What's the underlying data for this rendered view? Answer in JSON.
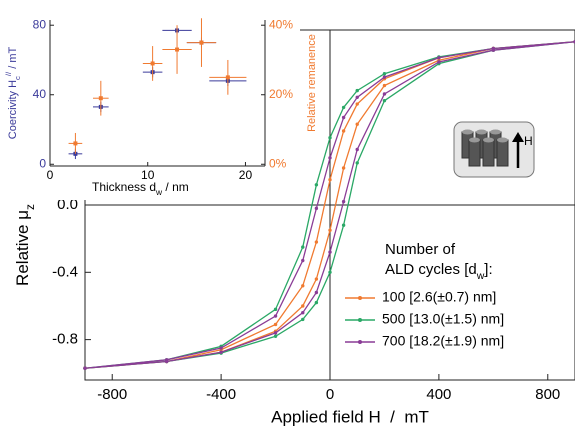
{
  "chart_data": [
    {
      "type": "line",
      "x_label": "Applied field H  /  mT",
      "y_label": [
        "Relative μ",
        "z"
      ],
      "xlim": [
        -900,
        900
      ],
      "ylim": [
        -1.04,
        1.04
      ],
      "xticks": [
        -800,
        -400,
        0,
        400,
        800
      ],
      "yticks": [
        -0.8,
        -0.4,
        {
          "value": 0,
          "label": "0.0"
        }
      ],
      "legend_title": [
        "Number of",
        "ALD cycles [d",
        "w",
        "]:"
      ],
      "schematic_label": "H",
      "series": [
        {
          "name": "100 [2.6(±0.7) nm]",
          "color": "#f07a30",
          "x": [
            -900,
            -600,
            -400,
            -200,
            -100,
            -50,
            0,
            50,
            100,
            200,
            400,
            600,
            900,
            900,
            600,
            400,
            200,
            100,
            50,
            0,
            -50,
            -100,
            -200,
            -400,
            -600,
            -900
          ],
          "values": [
            -0.97,
            -0.93,
            -0.875,
            -0.75,
            -0.6,
            -0.44,
            -0.15,
            0.22,
            0.48,
            0.71,
            0.86,
            0.93,
            0.97,
            0.97,
            0.93,
            0.875,
            0.75,
            0.6,
            0.44,
            0.15,
            -0.22,
            -0.48,
            -0.71,
            -0.86,
            -0.93,
            -0.97
          ]
        },
        {
          "name": "500 [13.0(±1.5) nm]",
          "color": "#2aa866",
          "x": [
            -900,
            -600,
            -400,
            -200,
            -100,
            -50,
            0,
            50,
            100,
            200,
            400,
            600,
            900,
            900,
            600,
            400,
            200,
            100,
            50,
            0,
            -50,
            -100,
            -200,
            -400,
            -600,
            -900
          ],
          "values": [
            -0.97,
            -0.93,
            -0.88,
            -0.78,
            -0.68,
            -0.58,
            -0.4,
            -0.12,
            0.25,
            0.62,
            0.84,
            0.92,
            0.97,
            0.97,
            0.93,
            0.88,
            0.78,
            0.68,
            0.58,
            0.4,
            0.12,
            -0.25,
            -0.62,
            -0.84,
            -0.92,
            -0.97
          ]
        },
        {
          "name": "700 [18.2(±1.9) nm]",
          "color": "#8a3c96",
          "x": [
            -900,
            -600,
            -400,
            -200,
            -100,
            -50,
            0,
            50,
            100,
            200,
            400,
            600,
            900,
            900,
            600,
            400,
            200,
            100,
            50,
            0,
            -50,
            -100,
            -200,
            -400,
            -600,
            -900
          ],
          "values": [
            -0.97,
            -0.93,
            -0.875,
            -0.76,
            -0.64,
            -0.52,
            -0.28,
            0.02,
            0.33,
            0.66,
            0.85,
            0.92,
            0.97,
            0.97,
            0.93,
            0.875,
            0.76,
            0.64,
            0.52,
            0.28,
            -0.02,
            -0.33,
            -0.66,
            -0.85,
            -0.92,
            -0.97
          ]
        }
      ]
    },
    {
      "type": "scatter",
      "x_label": [
        "Thickness d",
        "w",
        " / nm"
      ],
      "y_label": [
        "Coercivity H",
        "c",
        "//",
        " / mT"
      ],
      "y2_label": "Relative remanence",
      "xlim": [
        0,
        22
      ],
      "ylim": [
        -1,
        83
      ],
      "y2lim": [
        -0.5,
        41.5
      ],
      "xticks": [
        0,
        10,
        20
      ],
      "yticks": [
        0,
        40,
        80
      ],
      "y2ticks": [
        {
          "value": 0,
          "label": "0%"
        },
        {
          "value": 20,
          "label": "20%"
        },
        {
          "value": 40,
          "label": "40%"
        }
      ],
      "series": [
        {
          "color": "#3a3a9a",
          "x": [
            2.6,
            5.2,
            10.5,
            13.0,
            15.5,
            18.2
          ],
          "xerr": [
            0.7,
            0.8,
            1.0,
            1.5,
            1.5,
            1.9
          ],
          "values": [
            6,
            33,
            53,
            77,
            70,
            48
          ],
          "yerr": [
            3,
            3,
            3,
            2,
            3,
            3
          ]
        },
        {
          "color": "#f07a30",
          "axis": "y2",
          "x": [
            2.6,
            5.2,
            10.5,
            13.0,
            15.5,
            18.2
          ],
          "xerr": [
            0.7,
            0.8,
            1.0,
            1.5,
            1.5,
            1.9
          ],
          "values": [
            6,
            19,
            29,
            33,
            35,
            25
          ],
          "yerr": [
            3,
            5,
            5,
            7,
            7,
            5
          ]
        }
      ]
    }
  ]
}
